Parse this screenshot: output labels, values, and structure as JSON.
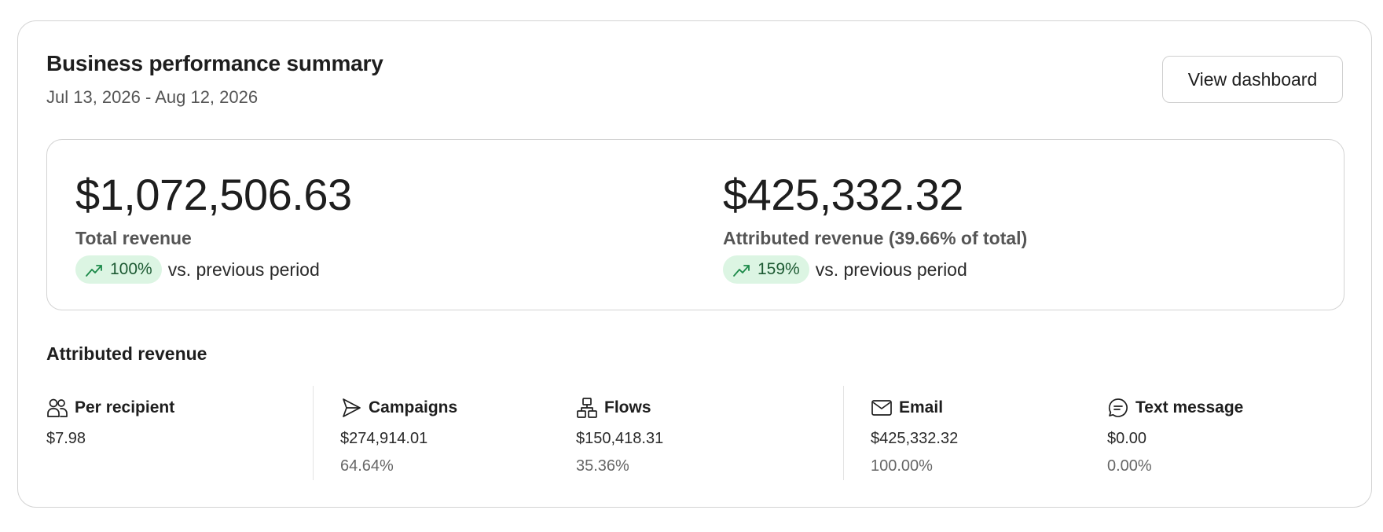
{
  "header": {
    "title": "Business performance summary",
    "date_range": "Jul 13, 2026 - Aug 12, 2026",
    "view_dashboard_label": "View dashboard"
  },
  "summary": {
    "total": {
      "value": "$1,072,506.63",
      "label": "Total revenue",
      "trend_icon": "trending-up-icon",
      "trend_pct": "100%",
      "trend_text": "vs. previous period"
    },
    "attributed": {
      "value": "$425,332.32",
      "label": "Attributed revenue (39.66% of total)",
      "trend_icon": "trending-up-icon",
      "trend_pct": "159%",
      "trend_text": "vs. previous period"
    }
  },
  "attributed_section": {
    "title": "Attributed revenue",
    "stats": [
      {
        "icon": "users-icon",
        "label": "Per recipient",
        "value": "$7.98",
        "pct": ""
      },
      {
        "icon": "send-icon",
        "label": "Campaigns",
        "value": "$274,914.01",
        "pct": "64.64%"
      },
      {
        "icon": "flow-icon",
        "label": "Flows",
        "value": "$150,418.31",
        "pct": "35.36%"
      },
      {
        "icon": "mail-icon",
        "label": "Email",
        "value": "$425,332.32",
        "pct": "100.00%"
      },
      {
        "icon": "message-icon",
        "label": "Text message",
        "value": "$0.00",
        "pct": "0.00%"
      }
    ]
  },
  "colors": {
    "trend_pill_bg": "#dcf5e3",
    "trend_pill_text": "#1d5a33",
    "border": "#d3d3d3"
  }
}
